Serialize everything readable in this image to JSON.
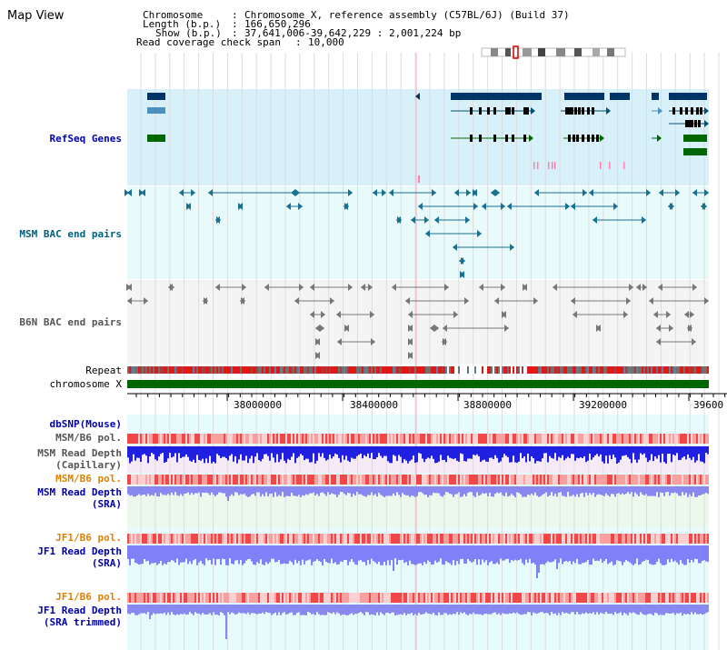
{
  "title": "Map View",
  "header": {
    "chromosome_key": "Chromosome",
    "chromosome_val": "Chromosome X, reference assembly (C57BL/6J) (Build 37)",
    "length_key": "Length (b.p.)",
    "length_val": "166,650,296",
    "show_key": "Show (b.p.)",
    "show_val": "37,641,006-39,642,229 : 2,001,224 bp",
    "span_key": "Read coverage check span",
    "span_val": "10,000"
  },
  "tracks": {
    "refseq": "RefSeq Genes",
    "msm_bac": "MSM BAC end pairs",
    "b6n_bac": "B6N BAC end pairs",
    "repeat": "Repeat",
    "chromosome": "chromosome X",
    "dbsnp": "dbSNP(Mouse)",
    "msm_b6_pol_1": "MSM/B6 pol.",
    "msm_depth_cap_1": "MSM Read Depth",
    "msm_depth_cap_2": "(Capillary)",
    "msm_b6_pol_2": "MSM/B6 pol.",
    "msm_depth_sra_1": "MSM Read Depth",
    "msm_depth_sra_2": "(SRA)",
    "jf1_b6_pol_1": "JF1/B6 pol.",
    "jf1_depth_sra_1": "JF1 Read Depth",
    "jf1_depth_sra_2": "(SRA)",
    "jf1_b6_pol_2": "JF1/B6 pol.",
    "jf1_depth_trim_1": "JF1 Read Depth",
    "jf1_depth_trim_2": "(SRA trimmed)"
  },
  "axis_ticks": [
    "38000000",
    "38400000",
    "38800000",
    "39200000",
    "39600"
  ],
  "colors": {
    "label_blue": "#0000aa",
    "label_teal": "#006080",
    "label_orange": "#e08000",
    "refseq_bg": "#d8f0fa",
    "msm_bac_bg": "#e8fafa",
    "b6n_bac_bg": "#f4f4f4",
    "gene_navy": "#003366",
    "gene_green": "#006600",
    "chromosome_bar": "#006600",
    "depth_blue": "#2a2aee",
    "pol_red": "#f06060"
  }
}
